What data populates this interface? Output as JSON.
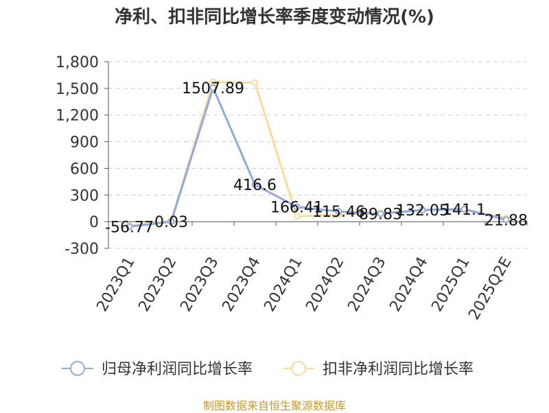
{
  "chart_data": {
    "type": "line",
    "title": "净利、扣非同比增长率季度变动情况(%)",
    "categories": [
      "2023Q1",
      "2023Q2",
      "2023Q3",
      "2023Q4",
      "2024Q1",
      "2024Q2",
      "2024Q3",
      "2024Q4",
      "2025Q1",
      "2025Q2E"
    ],
    "ylim": [
      -300,
      1800
    ],
    "yticks": [
      -300,
      0,
      300,
      600,
      900,
      1200,
      1500,
      1800
    ],
    "ytick_labels": [
      "-300",
      "0",
      "300",
      "600",
      "900",
      "1,200",
      "1,500",
      "1,800"
    ],
    "grid": true,
    "legend_position": "bottom",
    "series": [
      {
        "name": "归母净利润同比增长率",
        "color": "#8faadc",
        "values": [
          -56.77,
          0.03,
          1507.89,
          416.6,
          166.41,
          115.46,
          89.83,
          132.05,
          141.1,
          21.88
        ],
        "labels": [
          "-56.77",
          "0.03",
          "1507.89",
          "416.6",
          "166.41",
          "115.46",
          "89.83",
          "132.05",
          "141.1",
          "21.88"
        ]
      },
      {
        "name": "扣非净利润同比增长率",
        "color": "#fdd99b",
        "values": [
          -40,
          10,
          1570,
          1565,
          60,
          80,
          95,
          125,
          135,
          40
        ]
      }
    ]
  },
  "source": "制图数据来自恒生聚源数据库"
}
